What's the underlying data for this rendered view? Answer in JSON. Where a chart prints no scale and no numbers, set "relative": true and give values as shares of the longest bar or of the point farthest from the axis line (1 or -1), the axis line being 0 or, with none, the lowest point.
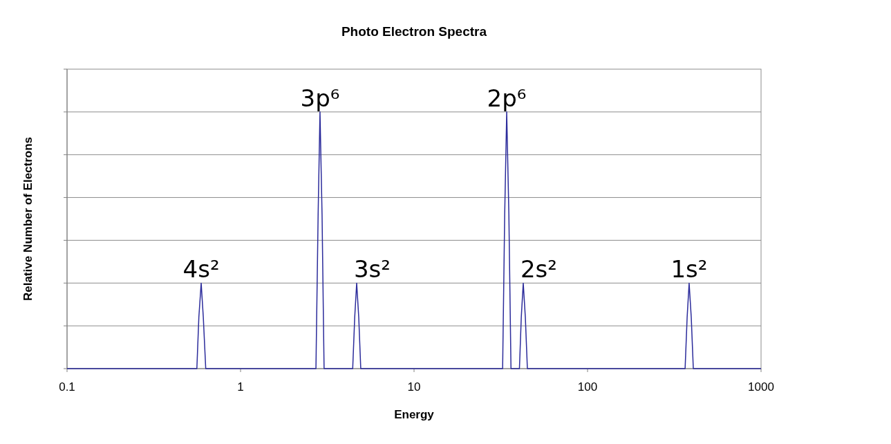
{
  "chart_data": {
    "type": "line",
    "title": "Photo Electron Spectra",
    "xlabel": "Energy",
    "ylabel": "Relative Number of Electrons",
    "relative": true,
    "log": "x",
    "xlim": [
      0.1,
      1000
    ],
    "xticks": [
      0.1,
      1,
      10,
      100,
      1000
    ],
    "grid": true,
    "series": [
      {
        "color": "#2b2b9b",
        "x": [
          0.1,
          0.56,
          0.575,
          0.593,
          0.61,
          0.63,
          2.72,
          2.8,
          2.87,
          2.95,
          3.03,
          4.43,
          4.55,
          4.67,
          4.8,
          4.93,
          32.4,
          33.3,
          34.2,
          35.2,
          36.2,
          40.5,
          41.5,
          42.6,
          43.8,
          45,
          365,
          375,
          385,
          396,
          407,
          1000
        ],
        "values": [
          0,
          0,
          0.2,
          0.333,
          0.2,
          0,
          0,
          0.6,
          1,
          0.6,
          0,
          0,
          0.2,
          0.333,
          0.2,
          0,
          0,
          0.6,
          1,
          0.6,
          0,
          0,
          0.2,
          0.333,
          0.2,
          0,
          0,
          0.2,
          0.333,
          0.2,
          0,
          0
        ]
      }
    ],
    "annotations": [
      {
        "text": "4s²",
        "x": 0.593,
        "y": 0.333
      },
      {
        "text": "3p⁶",
        "x": 2.87,
        "y": 1
      },
      {
        "text": "3s²",
        "x": 4.67,
        "y": 0.333
      },
      {
        "text": "2p⁶",
        "x": 34.2,
        "y": 1
      },
      {
        "text": "2s²",
        "x": 42.6,
        "y": 0.333
      },
      {
        "text": "1s²",
        "x": 385,
        "y": 0.333
      }
    ]
  }
}
